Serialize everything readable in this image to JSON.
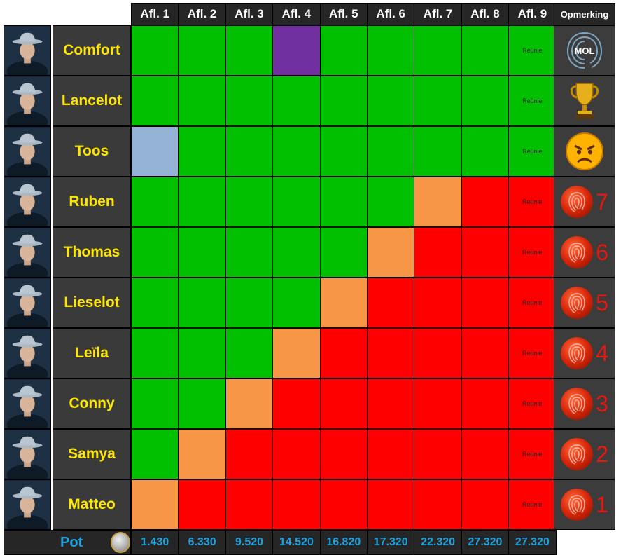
{
  "header": {
    "episodes": [
      "Afl. 1",
      "Afl. 2",
      "Afl. 3",
      "Afl. 4",
      "Afl. 5",
      "Afl. 6",
      "Afl. 7",
      "Afl. 8",
      "Afl. 9"
    ],
    "remark_label": "Opmerking"
  },
  "colors": {
    "safe": "#00c000",
    "mole": "#7030a0",
    "exempt": "#95b3d7",
    "eliminated": "#f79646",
    "out": "#ff0000",
    "name_text": "#ffe600",
    "pot_text": "#1da2e0"
  },
  "reunion_label": "Reünie",
  "rows": [
    {
      "name": "Comfort",
      "statuses": [
        "safe",
        "safe",
        "safe",
        "mole",
        "safe",
        "safe",
        "safe",
        "safe",
        "safe"
      ],
      "remark": "mol-logo",
      "rank": ""
    },
    {
      "name": "Lancelot",
      "statuses": [
        "safe",
        "safe",
        "safe",
        "safe",
        "safe",
        "safe",
        "safe",
        "safe",
        "safe"
      ],
      "remark": "trophy-icon",
      "rank": ""
    },
    {
      "name": "Toos",
      "statuses": [
        "exempt",
        "safe",
        "safe",
        "safe",
        "safe",
        "safe",
        "safe",
        "safe",
        "safe"
      ],
      "remark": "angry-face-icon",
      "rank": ""
    },
    {
      "name": "Ruben",
      "statuses": [
        "safe",
        "safe",
        "safe",
        "safe",
        "safe",
        "safe",
        "eliminated",
        "out",
        "out"
      ],
      "remark": "fingerprint-icon",
      "rank": "7"
    },
    {
      "name": "Thomas",
      "statuses": [
        "safe",
        "safe",
        "safe",
        "safe",
        "safe",
        "eliminated",
        "out",
        "out",
        "out"
      ],
      "remark": "fingerprint-icon",
      "rank": "6"
    },
    {
      "name": "Lieselot",
      "statuses": [
        "safe",
        "safe",
        "safe",
        "safe",
        "eliminated",
        "out",
        "out",
        "out",
        "out"
      ],
      "remark": "fingerprint-icon",
      "rank": "5"
    },
    {
      "name": "Leïla",
      "statuses": [
        "safe",
        "safe",
        "safe",
        "eliminated",
        "out",
        "out",
        "out",
        "out",
        "out"
      ],
      "remark": "fingerprint-icon",
      "rank": "4"
    },
    {
      "name": "Conny",
      "statuses": [
        "safe",
        "safe",
        "eliminated",
        "out",
        "out",
        "out",
        "out",
        "out",
        "out"
      ],
      "remark": "fingerprint-icon",
      "rank": "3"
    },
    {
      "name": "Samya",
      "statuses": [
        "safe",
        "eliminated",
        "out",
        "out",
        "out",
        "out",
        "out",
        "out",
        "out"
      ],
      "remark": "fingerprint-icon",
      "rank": "2"
    },
    {
      "name": "Matteo",
      "statuses": [
        "eliminated",
        "out",
        "out",
        "out",
        "out",
        "out",
        "out",
        "out",
        "out"
      ],
      "remark": "fingerprint-icon",
      "rank": "1"
    }
  ],
  "pot": {
    "label": "Pot",
    "values": [
      "1.430",
      "6.330",
      "9.520",
      "14.520",
      "16.820",
      "17.320",
      "22.320",
      "27.320",
      "27.320"
    ]
  }
}
